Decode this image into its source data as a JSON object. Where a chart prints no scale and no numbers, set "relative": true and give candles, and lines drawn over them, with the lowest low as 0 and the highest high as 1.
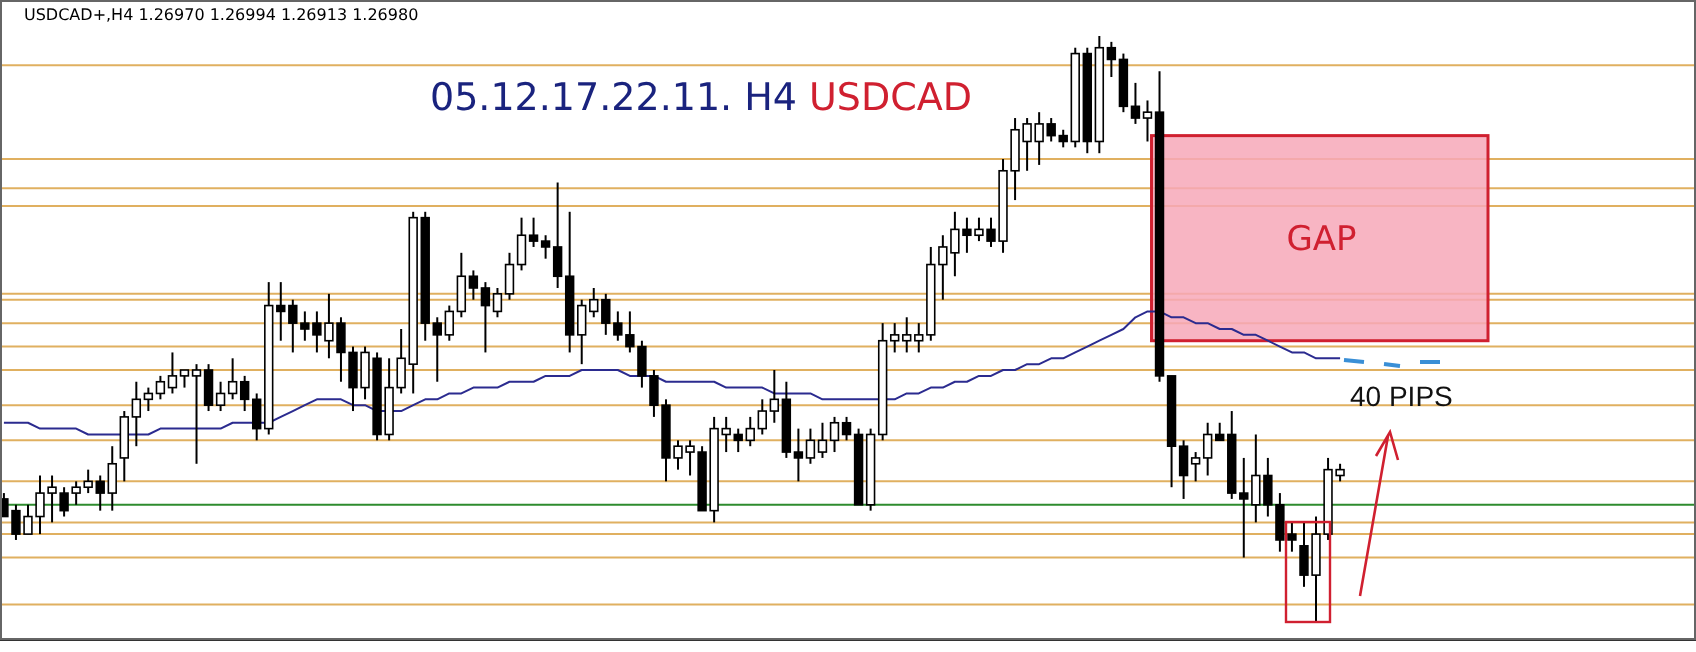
{
  "chart_data": {
    "type": "candlestick",
    "relative": true,
    "title": "05.12.17.22.11. H4",
    "subtitle": "USDCAD",
    "annotations": [
      "USDCAD+,H4 1.26970 1.26994 1.26913 1.26980",
      {
        "text": "40 PIPS"
      }
    ],
    "categories": [
      null,
      null,
      null,
      null,
      null,
      null,
      null,
      null,
      null,
      null,
      null,
      null,
      null,
      null,
      null,
      null,
      null,
      null,
      null,
      null,
      null,
      null,
      null,
      null,
      null,
      null,
      null,
      null,
      null,
      null,
      null,
      null,
      null,
      null,
      null,
      null,
      null,
      null,
      null,
      null,
      null,
      null,
      null,
      null,
      null,
      null,
      null,
      null,
      null,
      null,
      null,
      null,
      null,
      null,
      null,
      null,
      null,
      null,
      null,
      null,
      null,
      null,
      null,
      null,
      null,
      null,
      null,
      null,
      null,
      null,
      null,
      null,
      null,
      null,
      null,
      null,
      null,
      null,
      null,
      null,
      null,
      null,
      null,
      null,
      null,
      null,
      null,
      null,
      null,
      null,
      null,
      null,
      null,
      null,
      null,
      null,
      null,
      null,
      null,
      null,
      null,
      null,
      null,
      null,
      null,
      null,
      null,
      null,
      null,
      null,
      null,
      null
    ],
    "ohlc": [
      [
        0.21,
        0.22,
        0.18,
        0.18
      ],
      [
        0.19,
        0.2,
        0.14,
        0.15
      ],
      [
        0.15,
        0.2,
        0.15,
        0.18
      ],
      [
        0.18,
        0.25,
        0.15,
        0.22
      ],
      [
        0.22,
        0.25,
        0.17,
        0.23
      ],
      [
        0.22,
        0.23,
        0.18,
        0.19
      ],
      [
        0.22,
        0.24,
        0.2,
        0.23
      ],
      [
        0.23,
        0.26,
        0.22,
        0.24
      ],
      [
        0.24,
        0.25,
        0.19,
        0.22
      ],
      [
        0.22,
        0.3,
        0.19,
        0.27
      ],
      [
        0.28,
        0.36,
        0.24,
        0.35
      ],
      [
        0.35,
        0.41,
        0.3,
        0.38
      ],
      [
        0.38,
        0.4,
        0.36,
        0.39
      ],
      [
        0.39,
        0.42,
        0.38,
        0.41
      ],
      [
        0.4,
        0.46,
        0.39,
        0.42
      ],
      [
        0.42,
        0.43,
        0.4,
        0.43
      ],
      [
        0.42,
        0.44,
        0.27,
        0.43
      ],
      [
        0.43,
        0.44,
        0.36,
        0.37
      ],
      [
        0.37,
        0.41,
        0.36,
        0.39
      ],
      [
        0.39,
        0.45,
        0.38,
        0.41
      ],
      [
        0.41,
        0.42,
        0.36,
        0.38
      ],
      [
        0.38,
        0.39,
        0.31,
        0.33
      ],
      [
        0.33,
        0.58,
        0.32,
        0.54
      ],
      [
        0.54,
        0.58,
        0.48,
        0.53
      ],
      [
        0.54,
        0.55,
        0.46,
        0.51
      ],
      [
        0.51,
        0.53,
        0.48,
        0.5
      ],
      [
        0.51,
        0.53,
        0.46,
        0.49
      ],
      [
        0.48,
        0.56,
        0.45,
        0.51
      ],
      [
        0.51,
        0.52,
        0.41,
        0.46
      ],
      [
        0.46,
        0.47,
        0.36,
        0.4
      ],
      [
        0.4,
        0.47,
        0.38,
        0.46
      ],
      [
        0.45,
        0.46,
        0.31,
        0.32
      ],
      [
        0.32,
        0.45,
        0.31,
        0.4
      ],
      [
        0.4,
        0.5,
        0.39,
        0.45
      ],
      [
        0.44,
        0.7,
        0.39,
        0.69
      ],
      [
        0.69,
        0.7,
        0.48,
        0.51
      ],
      [
        0.51,
        0.52,
        0.41,
        0.49
      ],
      [
        0.49,
        0.54,
        0.48,
        0.53
      ],
      [
        0.53,
        0.63,
        0.52,
        0.59
      ],
      [
        0.59,
        0.6,
        0.55,
        0.57
      ],
      [
        0.57,
        0.58,
        0.46,
        0.54
      ],
      [
        0.53,
        0.57,
        0.52,
        0.56
      ],
      [
        0.56,
        0.63,
        0.55,
        0.61
      ],
      [
        0.61,
        0.69,
        0.6,
        0.66
      ],
      [
        0.66,
        0.69,
        0.64,
        0.65
      ],
      [
        0.65,
        0.66,
        0.62,
        0.64
      ],
      [
        0.64,
        0.75,
        0.57,
        0.59
      ],
      [
        0.59,
        0.7,
        0.46,
        0.49
      ],
      [
        0.49,
        0.55,
        0.44,
        0.54
      ],
      [
        0.53,
        0.57,
        0.52,
        0.55
      ],
      [
        0.55,
        0.56,
        0.49,
        0.51
      ],
      [
        0.51,
        0.53,
        0.48,
        0.49
      ],
      [
        0.49,
        0.53,
        0.46,
        0.47
      ],
      [
        0.47,
        0.48,
        0.4,
        0.42
      ],
      [
        0.42,
        0.43,
        0.35,
        0.37
      ],
      [
        0.37,
        0.38,
        0.24,
        0.28
      ],
      [
        0.28,
        0.31,
        0.26,
        0.3
      ],
      [
        0.29,
        0.31,
        0.25,
        0.3
      ],
      [
        0.29,
        0.3,
        0.19,
        0.19
      ],
      [
        0.19,
        0.35,
        0.17,
        0.33
      ],
      [
        0.32,
        0.35,
        0.29,
        0.33
      ],
      [
        0.32,
        0.33,
        0.29,
        0.31
      ],
      [
        0.31,
        0.35,
        0.3,
        0.33
      ],
      [
        0.33,
        0.38,
        0.32,
        0.36
      ],
      [
        0.36,
        0.43,
        0.34,
        0.38
      ],
      [
        0.38,
        0.41,
        0.28,
        0.29
      ],
      [
        0.29,
        0.33,
        0.24,
        0.28
      ],
      [
        0.28,
        0.33,
        0.27,
        0.31
      ],
      [
        0.29,
        0.34,
        0.28,
        0.31
      ],
      [
        0.31,
        0.35,
        0.29,
        0.34
      ],
      [
        0.34,
        0.35,
        0.31,
        0.32
      ],
      [
        0.32,
        0.33,
        0.2,
        0.2
      ],
      [
        0.2,
        0.33,
        0.19,
        0.32
      ],
      [
        0.32,
        0.51,
        0.31,
        0.48
      ],
      [
        0.48,
        0.51,
        0.46,
        0.49
      ],
      [
        0.48,
        0.52,
        0.46,
        0.49
      ],
      [
        0.48,
        0.51,
        0.46,
        0.49
      ],
      [
        0.49,
        0.64,
        0.48,
        0.61
      ],
      [
        0.61,
        0.66,
        0.55,
        0.64
      ],
      [
        0.63,
        0.7,
        0.59,
        0.67
      ],
      [
        0.67,
        0.69,
        0.63,
        0.66
      ],
      [
        0.66,
        0.69,
        0.65,
        0.67
      ],
      [
        0.67,
        0.69,
        0.64,
        0.65
      ],
      [
        0.65,
        0.79,
        0.63,
        0.77
      ],
      [
        0.77,
        0.86,
        0.72,
        0.84
      ],
      [
        0.82,
        0.86,
        0.77,
        0.85
      ],
      [
        0.82,
        0.87,
        0.78,
        0.85
      ],
      [
        0.85,
        0.86,
        0.82,
        0.83
      ],
      [
        0.83,
        0.84,
        0.81,
        0.82
      ],
      [
        0.82,
        0.98,
        0.81,
        0.97
      ],
      [
        0.97,
        0.98,
        0.8,
        0.82
      ],
      [
        0.82,
        1,
        0.8,
        0.98
      ],
      [
        0.98,
        0.99,
        0.93,
        0.96
      ],
      [
        0.96,
        0.97,
        0.87,
        0.88
      ],
      [
        0.88,
        0.92,
        0.85,
        0.86
      ],
      [
        0.86,
        0.89,
        0.82,
        0.87
      ],
      [
        0.87,
        0.94,
        0.41,
        0.42
      ],
      [
        0.42,
        0.42,
        0.23,
        0.3
      ],
      [
        0.3,
        0.31,
        0.21,
        0.25
      ],
      [
        0.27,
        0.29,
        0.24,
        0.28
      ],
      [
        0.28,
        0.34,
        0.25,
        0.32
      ],
      [
        0.32,
        0.34,
        0.31,
        0.31
      ],
      [
        0.32,
        0.36,
        0.21,
        0.22
      ],
      [
        0.22,
        0.28,
        0.11,
        0.21
      ],
      [
        0.2,
        0.32,
        0.17,
        0.25
      ],
      [
        0.25,
        0.28,
        0.18,
        0.2
      ],
      [
        0.2,
        0.22,
        0.12,
        0.14
      ],
      [
        0.15,
        0.17,
        0.12,
        0.14
      ],
      [
        0.13,
        0.17,
        0.06,
        0.08
      ],
      [
        0.08,
        0.18,
        0,
        0.15
      ],
      [
        0.15,
        0.28,
        0.14,
        0.26
      ],
      [
        0.25,
        0.27,
        0.24,
        0.26
      ]
    ],
    "series": [
      {
        "type": "line",
        "color": "#2b2b8f",
        "values": [
          0.34,
          0.34,
          0.34,
          0.33,
          0.33,
          0.33,
          0.33,
          0.32,
          0.32,
          0.32,
          0.32,
          0.32,
          0.32,
          0.33,
          0.33,
          0.33,
          0.33,
          0.33,
          0.33,
          0.34,
          0.34,
          0.34,
          0.34,
          0.35,
          0.36,
          0.37,
          0.38,
          0.38,
          0.38,
          0.37,
          0.37,
          0.36,
          0.36,
          0.36,
          0.37,
          0.38,
          0.38,
          0.39,
          0.39,
          0.4,
          0.4,
          0.4,
          0.41,
          0.41,
          0.41,
          0.42,
          0.42,
          0.42,
          0.43,
          0.43,
          0.43,
          0.43,
          0.42,
          0.42,
          0.42,
          0.41,
          0.41,
          0.41,
          0.41,
          0.41,
          0.4,
          0.4,
          0.4,
          0.4,
          0.39,
          0.39,
          0.39,
          0.39,
          0.38,
          0.38,
          0.38,
          0.38,
          0.38,
          0.38,
          0.38,
          0.39,
          0.39,
          0.4,
          0.4,
          0.41,
          0.41,
          0.42,
          0.42,
          0.43,
          0.43,
          0.44,
          0.44,
          0.45,
          0.45,
          0.46,
          0.47,
          0.48,
          0.49,
          0.5,
          0.52,
          0.53,
          0.53,
          0.52,
          0.52,
          0.51,
          0.51,
          0.5,
          0.5,
          0.49,
          0.49,
          0.48,
          0.47,
          0.46,
          0.46,
          0.45,
          0.45,
          0.45
        ]
      }
    ],
    "ref_lines": [
      {
        "axis": "y",
        "value": 0.95,
        "color": "#e0b060"
      },
      {
        "axis": "y",
        "value": 0.79,
        "color": "#e0b060"
      },
      {
        "axis": "y",
        "value": 0.74,
        "color": "#e0b060"
      },
      {
        "axis": "y",
        "value": 0.71,
        "color": "#e0b060"
      },
      {
        "axis": "y",
        "value": 0.56,
        "color": "#e0b060"
      },
      {
        "axis": "y",
        "value": 0.55,
        "color": "#e0b060"
      },
      {
        "axis": "y",
        "value": 0.51,
        "color": "#e0b060"
      },
      {
        "axis": "y",
        "value": 0.47,
        "color": "#e0b060"
      },
      {
        "axis": "y",
        "value": 0.43,
        "color": "#e0b060"
      },
      {
        "axis": "y",
        "value": 0.37,
        "color": "#e0b060"
      },
      {
        "axis": "y",
        "value": 0.31,
        "color": "#e0b060"
      },
      {
        "axis": "y",
        "value": 0.24,
        "color": "#e0b060"
      },
      {
        "axis": "y",
        "value": 0.2,
        "color": "#2e8b2e"
      },
      {
        "axis": "y",
        "value": 0.17,
        "color": "#e0b060"
      },
      {
        "axis": "y",
        "value": 0.15,
        "color": "#e0b060"
      },
      {
        "axis": "y",
        "value": 0.11,
        "color": "#e0b060"
      },
      {
        "axis": "y",
        "value": 0.03,
        "color": "#e0b060"
      }
    ],
    "bands": [
      {
        "axis": "y",
        "from": 0.48,
        "to": 0.83,
        "label": "GAP",
        "color": "#f7a8b8"
      }
    ]
  }
}
